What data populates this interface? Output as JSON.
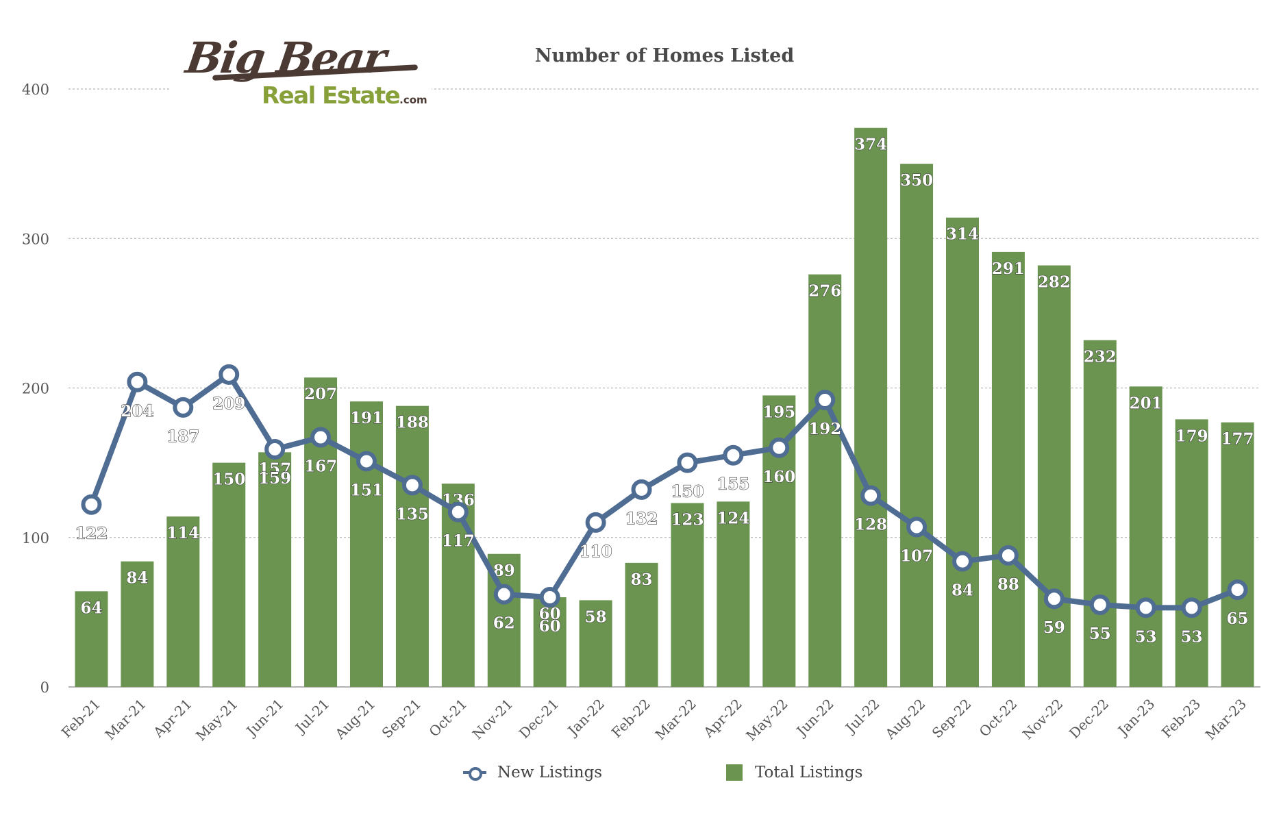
{
  "logo": {
    "script_text": "Big Bear",
    "sub_text": "Real Estate",
    "com_text": ".com",
    "colors": {
      "brown": "#4b3a33",
      "green": "#87a03a"
    }
  },
  "chart_data": {
    "type": "bar",
    "title": "Number of Homes Listed",
    "xlabel": "",
    "ylabel": "",
    "ylim": [
      0,
      400
    ],
    "yticks": [
      0,
      100,
      200,
      300,
      400
    ],
    "grid": true,
    "legend_position": "bottom",
    "categories": [
      "Feb-21",
      "Mar-21",
      "Apr-21",
      "May-21",
      "Jun-21",
      "Jul-21",
      "Aug-21",
      "Sep-21",
      "Oct-21",
      "Nov-21",
      "Dec-21",
      "Jan-22",
      "Feb-22",
      "Mar-22",
      "Apr-22",
      "May-22",
      "Jun-22",
      "Jul-22",
      "Aug-22",
      "Sep-22",
      "Oct-22",
      "Nov-22",
      "Dec-22",
      "Jan-23",
      "Feb-23",
      "Mar-23"
    ],
    "series": [
      {
        "name": "New Listings",
        "type": "line",
        "color": "#4f6d93",
        "values": [
          122,
          204,
          187,
          209,
          159,
          167,
          151,
          135,
          117,
          62,
          60,
          110,
          132,
          150,
          155,
          160,
          192,
          128,
          107,
          84,
          88,
          59,
          55,
          53,
          53,
          65
        ]
      },
      {
        "name": "Total Listings",
        "type": "bar",
        "color": "#6a9450",
        "values": [
          64,
          84,
          114,
          150,
          157,
          207,
          191,
          188,
          136,
          89,
          60,
          58,
          83,
          123,
          124,
          195,
          276,
          374,
          350,
          314,
          291,
          282,
          232,
          201,
          179,
          177
        ]
      }
    ]
  }
}
